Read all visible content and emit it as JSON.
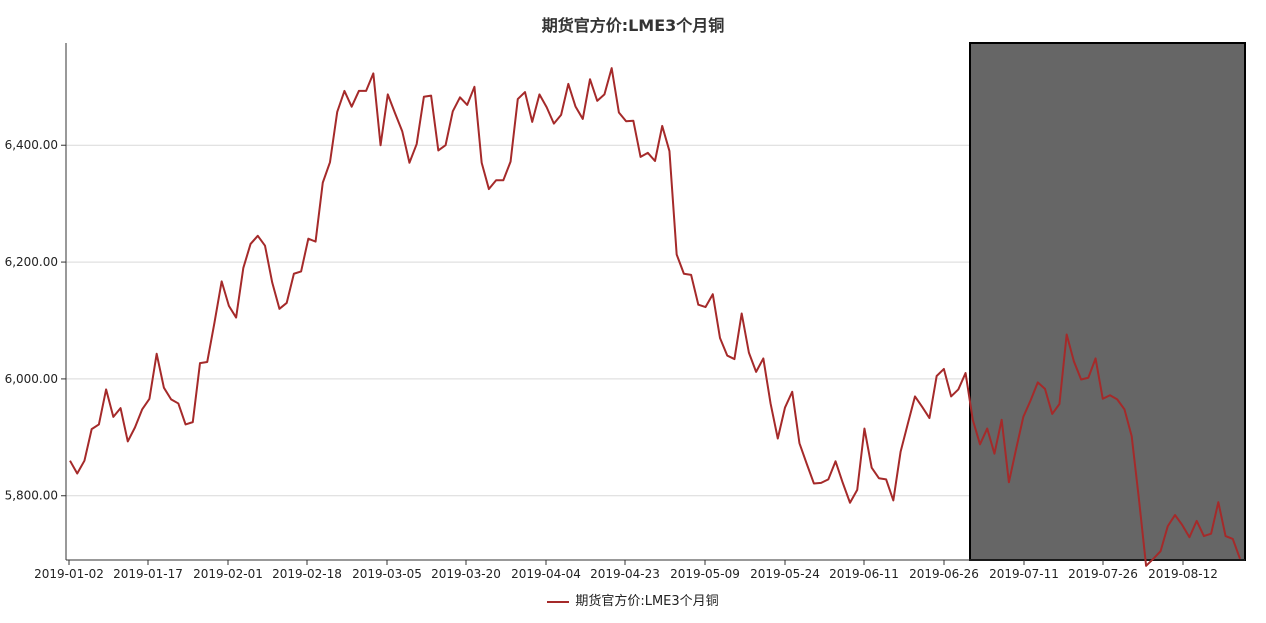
{
  "chart_data": {
    "type": "line",
    "title": "期货官方价:LME3个月铜",
    "xlabel": "",
    "ylabel": "",
    "ylim": [
      5690,
      6575
    ],
    "grid": true,
    "legend_position": "bottom-center",
    "x_tick_labels": [
      "2019-01-02",
      "2019-01-17",
      "2019-02-01",
      "2019-02-18",
      "2019-03-05",
      "2019-03-20",
      "2019-04-04",
      "2019-04-23",
      "2019-05-09",
      "2019-05-24",
      "2019-06-11",
      "2019-06-26",
      "2019-07-11",
      "2019-07-26",
      "2019-08-12"
    ],
    "y_ticks": [
      5800,
      6000,
      6200,
      6400
    ],
    "y_tick_labels": [
      "5,800.00",
      "6,000.00",
      "6,200.00",
      "6,400.00"
    ],
    "highlight_range": [
      "2019-07-03",
      "2019-08-22"
    ],
    "colors": {
      "line": "#a52a2a",
      "highlight": "#666666",
      "grid": "#d9d9d9"
    },
    "series": [
      {
        "name": "期货官方价:LME3个月铜",
        "values": [
          5860,
          5838,
          5860,
          5914,
          5922,
          5982,
          5935,
          5950,
          5893,
          5917,
          5948,
          5966,
          6043,
          5985,
          5965,
          5958,
          5922,
          5926,
          6027,
          6029,
          6096,
          6167,
          6125,
          6105,
          6190,
          6231,
          6245,
          6228,
          6165,
          6120,
          6130,
          6180,
          6184,
          6240,
          6235,
          6336,
          6371,
          6457,
          6493,
          6466,
          6493,
          6493,
          6523,
          6400,
          6487,
          6455,
          6424,
          6370,
          6402,
          6483,
          6485,
          6391,
          6400,
          6458,
          6482,
          6469,
          6500,
          6370,
          6325,
          6340,
          6340,
          6372,
          6479,
          6491,
          6440,
          6487,
          6465,
          6437,
          6452,
          6505,
          6466,
          6445,
          6513,
          6476,
          6487,
          6532,
          6456,
          6441,
          6442,
          6380,
          6387,
          6373,
          6433,
          6390,
          6213,
          6180,
          6178,
          6127,
          6123,
          6145,
          6070,
          6040,
          6034,
          6112,
          6045,
          6012,
          6035,
          5958,
          5898,
          5951,
          5978,
          5890,
          5855,
          5821,
          5822,
          5828,
          5859,
          5822,
          5788,
          5810,
          5915,
          5848,
          5830,
          5828,
          5792,
          5875,
          5923,
          5970,
          5952,
          5933,
          6005,
          6017,
          5970,
          5982,
          6010,
          5930,
          5888,
          5915,
          5872,
          5930,
          5823,
          5880,
          5935,
          5963,
          5994,
          5983,
          5940,
          5957,
          6076,
          6030,
          5999,
          6002,
          6035,
          5966,
          5972,
          5965,
          5948,
          5902,
          5795,
          5680,
          5692,
          5705,
          5748,
          5767,
          5750,
          5729,
          5757,
          5731,
          5735,
          5789,
          5731,
          5726,
          5692
        ]
      }
    ]
  }
}
